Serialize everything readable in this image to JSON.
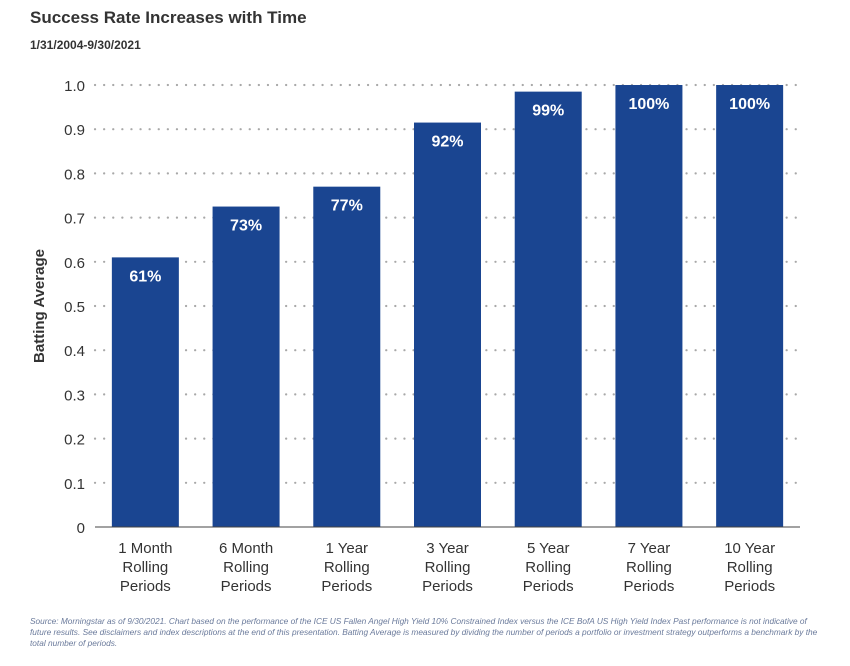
{
  "header": {
    "title": "Success Rate Increases with Time",
    "subtitle": "1/31/2004-9/30/2021"
  },
  "footnote": "Source: Morningstar as of 9/30/2021. Chart based on the performance of the ICE US Fallen Angel High Yield 10% Constrained Index versus the ICE BofA US High Yield Index Past performance is not indicative of future results. See disclaimers and index descriptions at the end of this presentation. Batting Average is measured by dividing the number of periods a portfolio or investment strategy outperforms a benchmark by the total number of periods.",
  "chart_data": {
    "type": "bar",
    "categories": [
      [
        "1 Month",
        "Rolling",
        "Periods"
      ],
      [
        "6 Month",
        "Rolling",
        "Periods"
      ],
      [
        "1 Year",
        "Rolling",
        "Periods"
      ],
      [
        "3 Year",
        "Rolling",
        "Periods"
      ],
      [
        "5 Year",
        "Rolling",
        "Periods"
      ],
      [
        "7 Year",
        "Rolling",
        "Periods"
      ],
      [
        "10 Year",
        "Rolling",
        "Periods"
      ]
    ],
    "values": [
      0.61,
      0.725,
      0.77,
      0.915,
      0.985,
      1.0,
      1.0
    ],
    "data_labels": [
      "61%",
      "73%",
      "77%",
      "92%",
      "99%",
      "100%",
      "100%"
    ],
    "ylabel": "Batting Average",
    "ylim": [
      0,
      1.0
    ],
    "yticks": [
      "0",
      "0.1",
      "0.2",
      "0.3",
      "0.4",
      "0.5",
      "0.6",
      "0.7",
      "0.8",
      "0.9",
      "1.0"
    ],
    "grid": true,
    "bar_color": "#1a4591",
    "grid_color": "#a8a8a8",
    "label_color": "#ffffff"
  }
}
